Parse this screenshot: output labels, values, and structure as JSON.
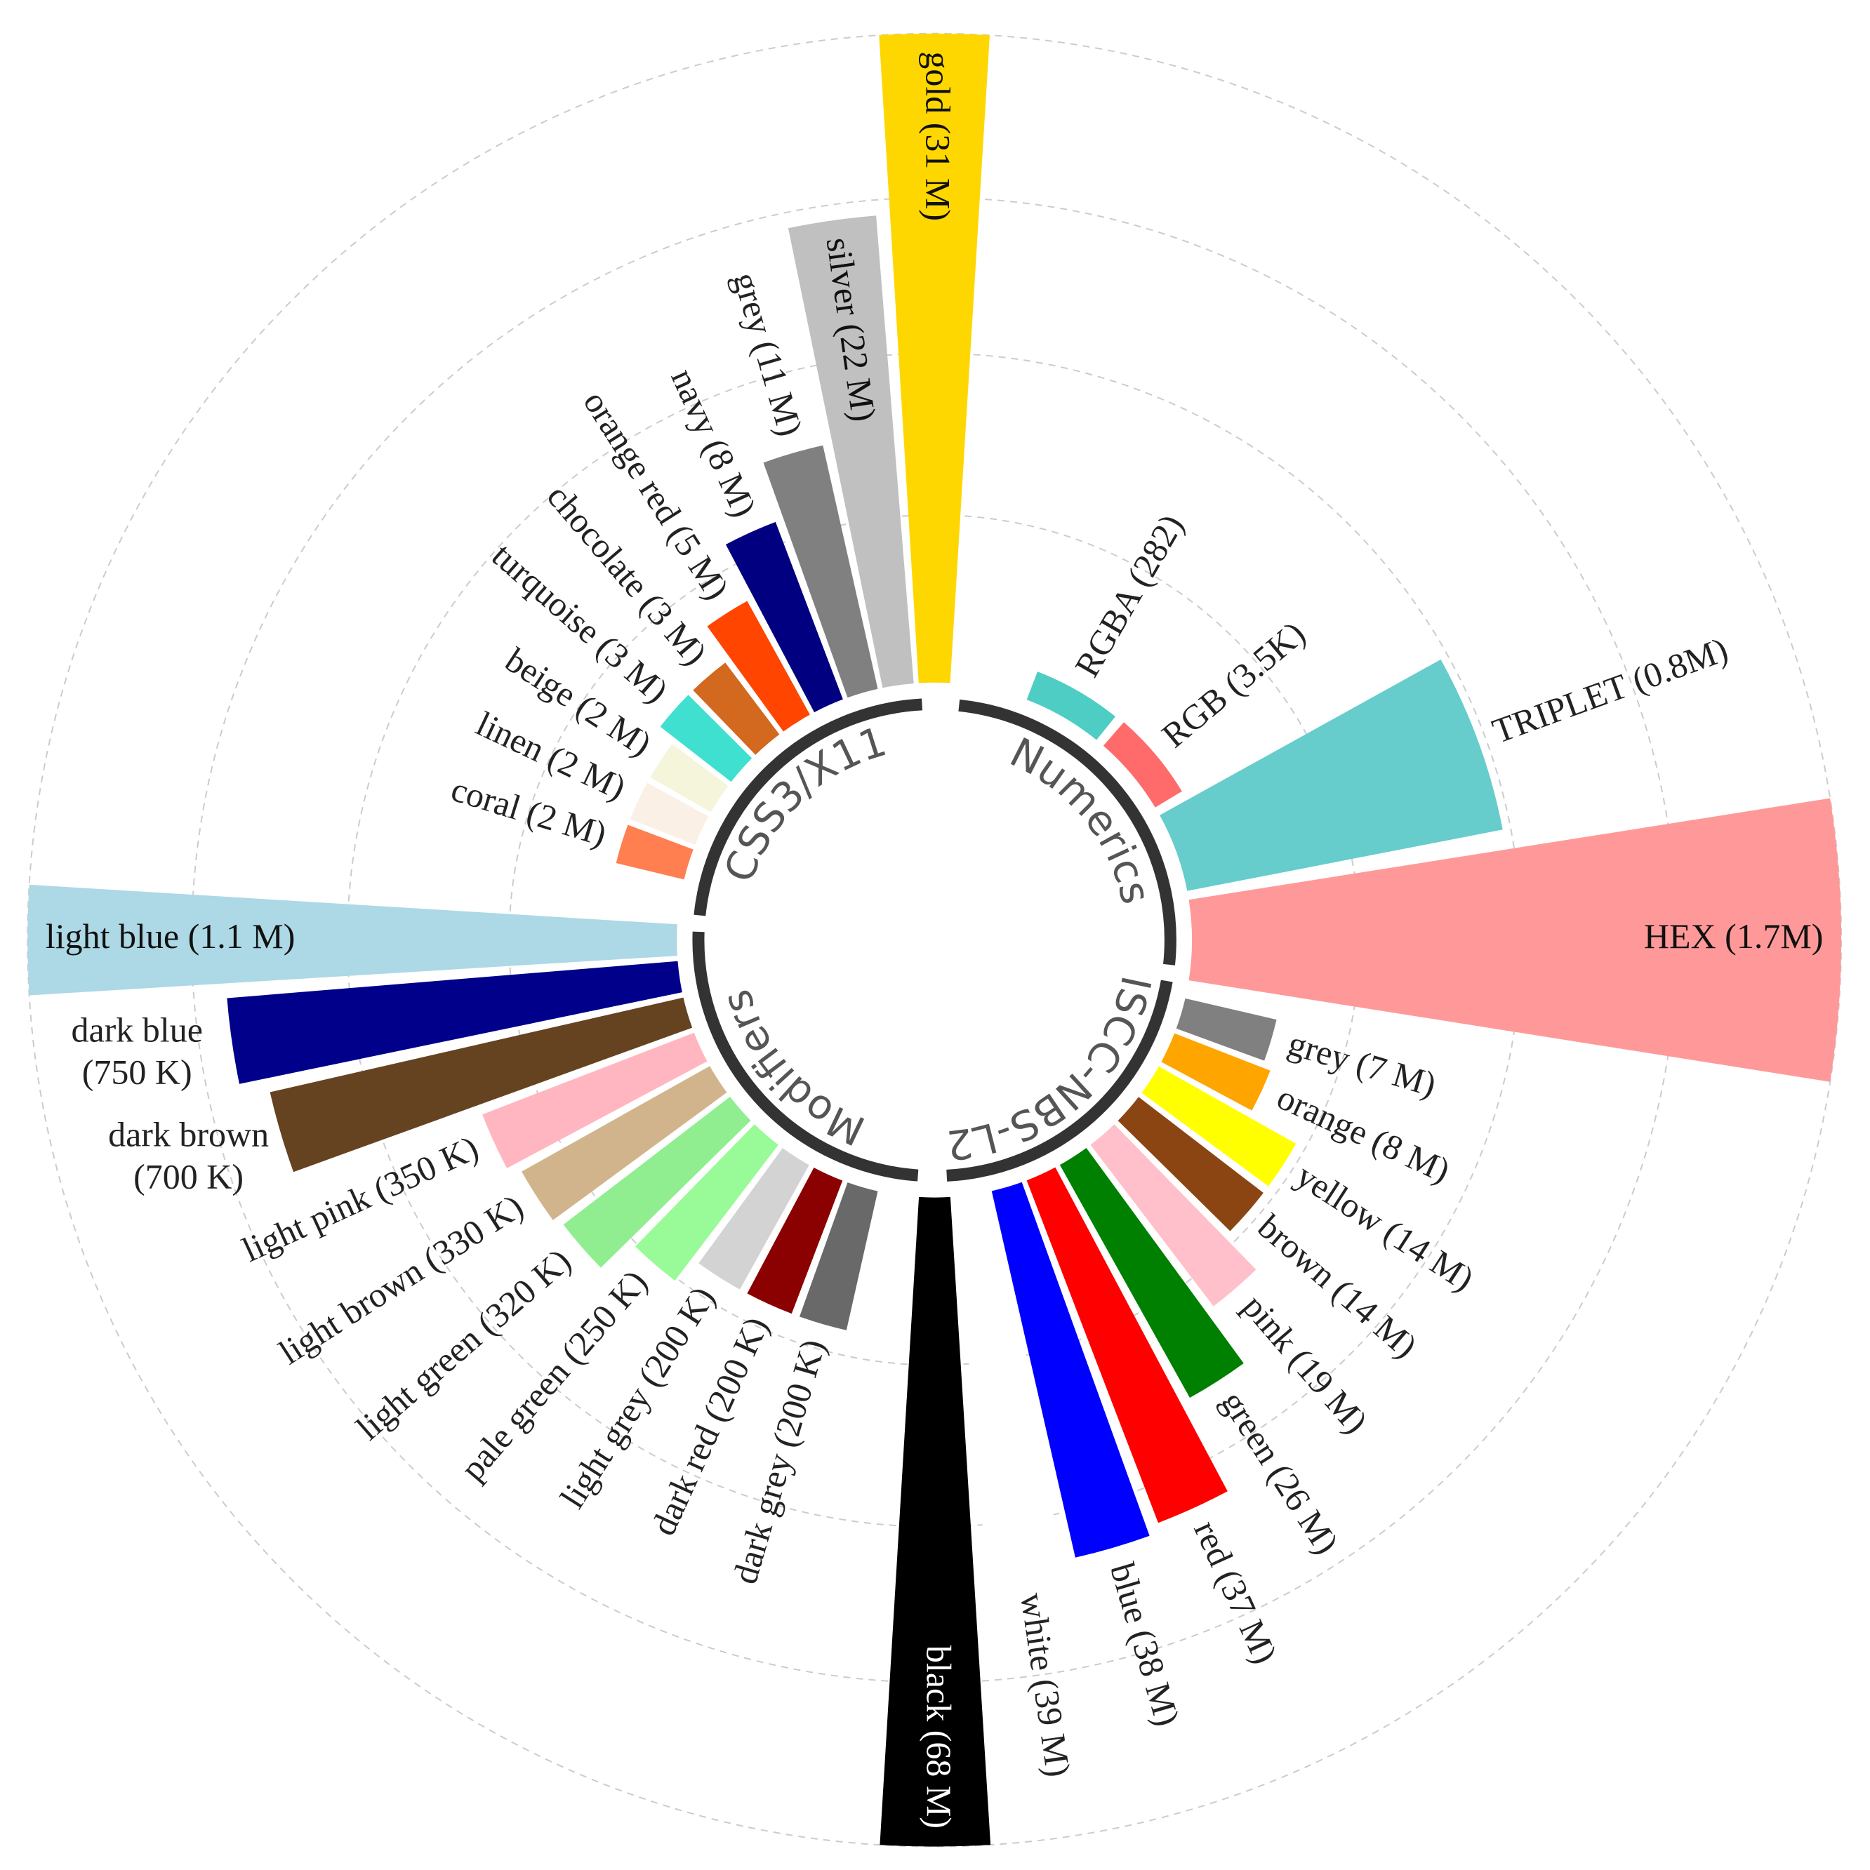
{
  "chart_data": {
    "type": "radial_bar",
    "groups": [
      {
        "name": "CSS3/X11",
        "bars": [
          {
            "label": "gold (31 M)",
            "value": 31000000,
            "color": "#FFD700"
          },
          {
            "label": "silver (22 M)",
            "value": 22000000,
            "color": "#C0C0C0"
          },
          {
            "label": "grey (11 M)",
            "value": 11000000,
            "color": "#808080"
          },
          {
            "label": "navy (8 M)",
            "value": 8000000,
            "color": "#000080"
          },
          {
            "label": "orange red (5 M)",
            "value": 5000000,
            "color": "#FF4500"
          },
          {
            "label": "chocolate (3 M)",
            "value": 3000000,
            "color": "#D2691E"
          },
          {
            "label": "turquoise (3 M)",
            "value": 3000000,
            "color": "#40E0D0"
          },
          {
            "label": "beige (2 M)",
            "value": 2000000,
            "color": "#F5F5DC"
          },
          {
            "label": "linen (2 M)",
            "value": 2000000,
            "color": "#FAF0E6"
          },
          {
            "label": "coral (2 M)",
            "value": 2000000,
            "color": "#FF7F50"
          }
        ]
      },
      {
        "name": "Numerics",
        "bars": [
          {
            "label": "RGBA (282)",
            "value": 282,
            "color": "#4ECDC4"
          },
          {
            "label": "RGB (3.5K)",
            "value": 3500,
            "color": "#FF6B6B"
          },
          {
            "label": "TRIPLET (0.8M)",
            "value": 800000,
            "color": "#66CCCC"
          },
          {
            "label": "HEX (1.7M)",
            "value": 1700000,
            "color": "#FF9999"
          }
        ]
      },
      {
        "name": "ISCC-NBS-L2",
        "bars": [
          {
            "label": "grey (7 M)",
            "value": 7000000,
            "color": "#808080"
          },
          {
            "label": "orange (8 M)",
            "value": 8000000,
            "color": "#FFA500"
          },
          {
            "label": "yellow (14 M)",
            "value": 14000000,
            "color": "#FFFF00"
          },
          {
            "label": "brown (14 M)",
            "value": 14000000,
            "color": "#8B4513"
          },
          {
            "label": "pink (19 M)",
            "value": 19000000,
            "color": "#FFC0CB"
          },
          {
            "label": "green (26 M)",
            "value": 26000000,
            "color": "#008000"
          },
          {
            "label": "red (37 M)",
            "value": 37000000,
            "color": "#FF0000"
          },
          {
            "label": "blue (38 M)",
            "value": 38000000,
            "color": "#0000FF"
          },
          {
            "label": "white (39 M)",
            "value": 39000000,
            "color": "#FFFFFF"
          },
          {
            "label": "black (68 M)",
            "value": 68000000,
            "color": "#000000"
          }
        ]
      },
      {
        "name": "Modifiers",
        "bars": [
          {
            "label": "light blue (1.1 M)",
            "value": 1100000,
            "color": "#ADD8E6"
          },
          {
            "label": [
              "dark blue",
              "(750 K)"
            ],
            "value": 750000,
            "color": "#00008B"
          },
          {
            "label": [
              "dark brown",
              "(700 K)"
            ],
            "value": 700000,
            "color": "#654321"
          },
          {
            "label": "light pink (350 K)",
            "value": 350000,
            "color": "#FFB6C1"
          },
          {
            "label": "light brown (330 K)",
            "value": 330000,
            "color": "#D2B48C"
          },
          {
            "label": "light green (320 K)",
            "value": 320000,
            "color": "#90EE90"
          },
          {
            "label": "pale green (250 K)",
            "value": 250000,
            "color": "#98FB98"
          },
          {
            "label": "light grey (200 K)",
            "value": 200000,
            "color": "#D3D3D3"
          },
          {
            "label": "dark red (200 K)",
            "value": 200000,
            "color": "#8B0000"
          },
          {
            "label": "dark grey (200 K)",
            "value": 200000,
            "color": "#696969"
          }
        ]
      }
    ]
  }
}
